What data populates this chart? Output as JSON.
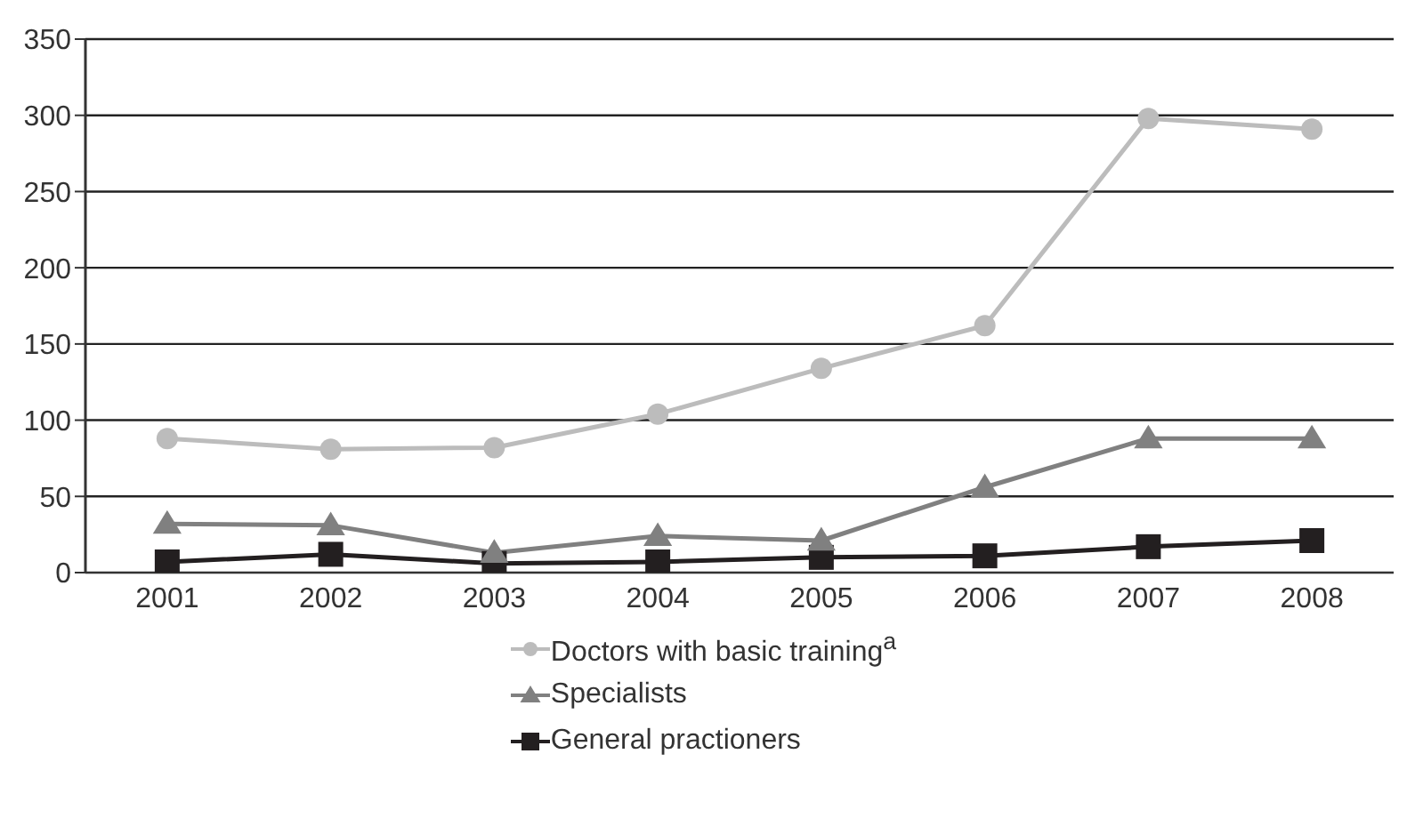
{
  "chart_data": {
    "type": "line",
    "categories": [
      "2001",
      "2002",
      "2003",
      "2004",
      "2005",
      "2006",
      "2007",
      "2008"
    ],
    "series": [
      {
        "name": "Doctors with basic training$^{a}$",
        "color": "#bcbcbc",
        "marker": "circle",
        "values": [
          88,
          81,
          82,
          104,
          134,
          162,
          298,
          291
        ]
      },
      {
        "name": "Specialists",
        "color": "#808080",
        "marker": "triangle",
        "values": [
          32,
          31,
          13,
          24,
          21,
          56,
          88,
          88
        ]
      },
      {
        "name": "General practioners",
        "color": "#231f20",
        "marker": "square",
        "values": [
          7,
          12,
          6,
          7,
          10,
          11,
          17,
          21
        ]
      }
    ],
    "ylim": [
      0,
      350
    ],
    "yticks": [
      0,
      50,
      100,
      150,
      200,
      250,
      300,
      350
    ],
    "grid": "y",
    "legend": "bottom",
    "line_style": "solid"
  }
}
